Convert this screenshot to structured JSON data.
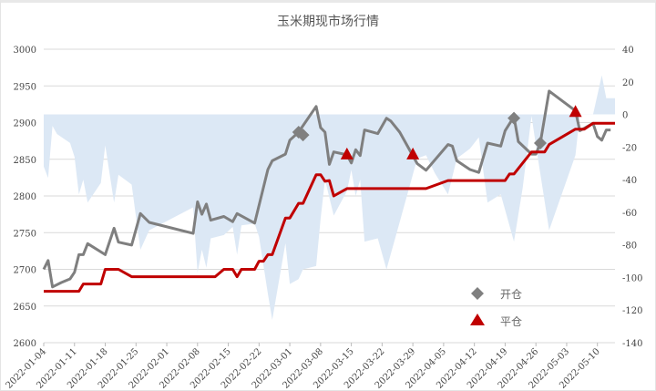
{
  "chart_data": {
    "type": "line",
    "title": "玉米期现市场行情",
    "x_ticks": [
      "2022-01-04",
      "2022-01-11",
      "2022-01-18",
      "2022-01-25",
      "2022-02-01",
      "2022-02-08",
      "2022-02-15",
      "2022-02-22",
      "2022-03-01",
      "2022-03-08",
      "2022-03-15",
      "2022-03-22",
      "2022-03-29",
      "2022-04-05",
      "2022-04-12",
      "2022-04-19",
      "2022-04-26",
      "2022-05-03",
      "2022-05-10"
    ],
    "xlim": [
      "2022-01-04",
      "2022-05-14"
    ],
    "y_left": {
      "ylim": [
        2600,
        3000
      ],
      "ticks": [
        2600,
        2650,
        2700,
        2750,
        2800,
        2850,
        2900,
        2950,
        3000
      ]
    },
    "y_right": {
      "ylim": [
        -140,
        40
      ],
      "ticks": [
        -140,
        -120,
        -100,
        -80,
        -60,
        -40,
        -20,
        0,
        20,
        40
      ]
    },
    "grid": true,
    "colors": {
      "gray_line": "#7f7f7f",
      "red_line": "#c00000",
      "area": "#dce8f5",
      "open_marker": "#808080",
      "close_marker": "#c00000"
    },
    "series": [
      {
        "axis": "left",
        "style": "line",
        "color": "#7f7f7f",
        "points": [
          [
            "2022-01-04",
            2700
          ],
          [
            "2022-01-05",
            2712
          ],
          [
            "2022-01-06",
            2676
          ],
          [
            "2022-01-08",
            2682
          ],
          [
            "2022-01-10",
            2687
          ],
          [
            "2022-01-11",
            2696
          ],
          [
            "2022-01-12",
            2720
          ],
          [
            "2022-01-13",
            2720
          ],
          [
            "2022-01-14",
            2735
          ],
          [
            "2022-01-18",
            2720
          ],
          [
            "2022-01-20",
            2756
          ],
          [
            "2022-01-21",
            2737
          ],
          [
            "2022-01-24",
            2733
          ],
          [
            "2022-01-26",
            2776
          ],
          [
            "2022-01-28",
            2764
          ],
          [
            "2022-02-07",
            2749
          ],
          [
            "2022-02-08",
            2792
          ],
          [
            "2022-02-09",
            2775
          ],
          [
            "2022-02-10",
            2789
          ],
          [
            "2022-02-11",
            2767
          ],
          [
            "2022-02-14",
            2772
          ],
          [
            "2022-02-16",
            2765
          ],
          [
            "2022-02-17",
            2776
          ],
          [
            "2022-02-21",
            2763
          ],
          [
            "2022-02-24",
            2836
          ],
          [
            "2022-02-25",
            2848
          ],
          [
            "2022-02-28",
            2857
          ],
          [
            "2022-03-01",
            2876
          ],
          [
            "2022-03-03",
            2887
          ],
          [
            "2022-03-07",
            2922
          ],
          [
            "2022-03-08",
            2893
          ],
          [
            "2022-03-09",
            2887
          ],
          [
            "2022-03-10",
            2843
          ],
          [
            "2022-03-11",
            2860
          ],
          [
            "2022-03-14",
            2856
          ],
          [
            "2022-03-15",
            2845
          ],
          [
            "2022-03-16",
            2863
          ],
          [
            "2022-03-17",
            2855
          ],
          [
            "2022-03-18",
            2890
          ],
          [
            "2022-03-21",
            2885
          ],
          [
            "2022-03-23",
            2906
          ],
          [
            "2022-03-24",
            2902
          ],
          [
            "2022-03-26",
            2887
          ],
          [
            "2022-03-30",
            2844
          ],
          [
            "2022-04-01",
            2835
          ],
          [
            "2022-04-06",
            2870
          ],
          [
            "2022-04-07",
            2868
          ],
          [
            "2022-04-08",
            2848
          ],
          [
            "2022-04-11",
            2836
          ],
          [
            "2022-04-13",
            2832
          ],
          [
            "2022-04-15",
            2872
          ],
          [
            "2022-04-18",
            2868
          ],
          [
            "2022-04-19",
            2889
          ],
          [
            "2022-04-21",
            2908
          ],
          [
            "2022-04-22",
            2874
          ],
          [
            "2022-04-25",
            2857
          ],
          [
            "2022-04-26",
            2857
          ],
          [
            "2022-04-27",
            2872
          ],
          [
            "2022-04-29",
            2943
          ],
          [
            "2022-05-05",
            2916
          ],
          [
            "2022-05-06",
            2889
          ],
          [
            "2022-05-09",
            2899
          ],
          [
            "2022-05-10",
            2881
          ],
          [
            "2022-05-11",
            2876
          ],
          [
            "2022-05-12",
            2890
          ],
          [
            "2022-05-13",
            2890
          ]
        ]
      },
      {
        "axis": "left",
        "style": "line",
        "color": "#c00000",
        "points": [
          [
            "2022-01-04",
            2670
          ],
          [
            "2022-01-12",
            2670
          ],
          [
            "2022-01-13",
            2680
          ],
          [
            "2022-01-17",
            2680
          ],
          [
            "2022-01-18",
            2700
          ],
          [
            "2022-01-21",
            2700
          ],
          [
            "2022-01-24",
            2690
          ],
          [
            "2022-02-12",
            2690
          ],
          [
            "2022-02-14",
            2700
          ],
          [
            "2022-02-16",
            2700
          ],
          [
            "2022-02-17",
            2690
          ],
          [
            "2022-02-18",
            2700
          ],
          [
            "2022-02-21",
            2700
          ],
          [
            "2022-02-22",
            2711
          ],
          [
            "2022-02-23",
            2711
          ],
          [
            "2022-02-24",
            2720
          ],
          [
            "2022-02-25",
            2720
          ],
          [
            "2022-02-28",
            2770
          ],
          [
            "2022-03-01",
            2770
          ],
          [
            "2022-03-03",
            2790
          ],
          [
            "2022-03-04",
            2790
          ],
          [
            "2022-03-07",
            2829
          ],
          [
            "2022-03-08",
            2829
          ],
          [
            "2022-03-09",
            2820
          ],
          [
            "2022-03-10",
            2821
          ],
          [
            "2022-03-11",
            2800
          ],
          [
            "2022-03-14",
            2810
          ],
          [
            "2022-04-01",
            2810
          ],
          [
            "2022-04-06",
            2821
          ],
          [
            "2022-04-19",
            2821
          ],
          [
            "2022-04-20",
            2830
          ],
          [
            "2022-04-21",
            2830
          ],
          [
            "2022-04-25",
            2860
          ],
          [
            "2022-04-28",
            2860
          ],
          [
            "2022-04-29",
            2870
          ],
          [
            "2022-05-05",
            2891
          ],
          [
            "2022-05-07",
            2891
          ],
          [
            "2022-05-09",
            2899
          ],
          [
            "2022-05-14",
            2899
          ]
        ]
      },
      {
        "axis": "right",
        "style": "area",
        "color": "#dce8f5",
        "points": [
          [
            "2022-01-04",
            -32
          ],
          [
            "2022-01-05",
            -39
          ],
          [
            "2022-01-06",
            -7
          ],
          [
            "2022-01-07",
            -12
          ],
          [
            "2022-01-10",
            -17.5
          ],
          [
            "2022-01-11",
            -26
          ],
          [
            "2022-01-12",
            -49
          ],
          [
            "2022-01-13",
            -40
          ],
          [
            "2022-01-14",
            -54
          ],
          [
            "2022-01-17",
            -42
          ],
          [
            "2022-01-18",
            -19
          ],
          [
            "2022-01-20",
            -54
          ],
          [
            "2022-01-21",
            -37
          ],
          [
            "2022-01-24",
            -43
          ],
          [
            "2022-01-26",
            -83
          ],
          [
            "2022-01-28",
            -71
          ],
          [
            "2022-02-07",
            -57
          ],
          [
            "2022-02-08",
            -97
          ],
          [
            "2022-02-09",
            -83
          ],
          [
            "2022-02-10",
            -94
          ],
          [
            "2022-02-11",
            -76
          ],
          [
            "2022-02-14",
            -74
          ],
          [
            "2022-02-16",
            -69
          ],
          [
            "2022-02-17",
            -86
          ],
          [
            "2022-02-18",
            -68
          ],
          [
            "2022-02-21",
            -67
          ],
          [
            "2022-02-22",
            -75
          ],
          [
            "2022-02-24",
            -110
          ],
          [
            "2022-02-25",
            -126
          ],
          [
            "2022-02-28",
            -79
          ],
          [
            "2022-03-01",
            -104
          ],
          [
            "2022-03-03",
            -101
          ],
          [
            "2022-03-04",
            -95
          ],
          [
            "2022-03-07",
            -93
          ],
          [
            "2022-03-08",
            -64
          ],
          [
            "2022-03-09",
            -40
          ],
          [
            "2022-03-11",
            -62
          ],
          [
            "2022-03-14",
            -47
          ],
          [
            "2022-03-15",
            -34
          ],
          [
            "2022-03-16",
            -50
          ],
          [
            "2022-03-17",
            -40
          ],
          [
            "2022-03-18",
            -78
          ],
          [
            "2022-03-21",
            -76
          ],
          [
            "2022-03-23",
            -95
          ],
          [
            "2022-03-26",
            -66
          ],
          [
            "2022-03-30",
            -27
          ],
          [
            "2022-04-01",
            -25
          ],
          [
            "2022-04-03",
            -36
          ],
          [
            "2022-04-06",
            -49
          ],
          [
            "2022-04-08",
            -27
          ],
          [
            "2022-04-11",
            -21
          ],
          [
            "2022-04-13",
            -14
          ],
          [
            "2022-04-15",
            -54
          ],
          [
            "2022-04-18",
            -49
          ],
          [
            "2022-04-21",
            -78
          ],
          [
            "2022-04-23",
            -45
          ],
          [
            "2022-04-25",
            -1
          ],
          [
            "2022-04-26",
            -19
          ],
          [
            "2022-04-29",
            -71
          ],
          [
            "2022-05-05",
            -25
          ],
          [
            "2022-05-06",
            0
          ],
          [
            "2022-05-09",
            0
          ],
          [
            "2022-05-11",
            24
          ],
          [
            "2022-05-12",
            10
          ],
          [
            "2022-05-14",
            10
          ]
        ]
      }
    ],
    "markers": [
      {
        "label": "开仓",
        "shape": "diamond",
        "color": "#808080",
        "points": [
          [
            "2022-03-03",
            2887
          ],
          [
            "2022-03-04",
            2883
          ],
          [
            "2022-04-21",
            2906
          ],
          [
            "2022-04-27",
            2872
          ]
        ]
      },
      {
        "label": "平仓",
        "shape": "triangle",
        "color": "#c00000",
        "points": [
          [
            "2022-03-14",
            2856
          ],
          [
            "2022-03-29",
            2856
          ],
          [
            "2022-05-05",
            2914
          ]
        ]
      }
    ],
    "legend": {
      "placement": "bottom-right"
    }
  }
}
